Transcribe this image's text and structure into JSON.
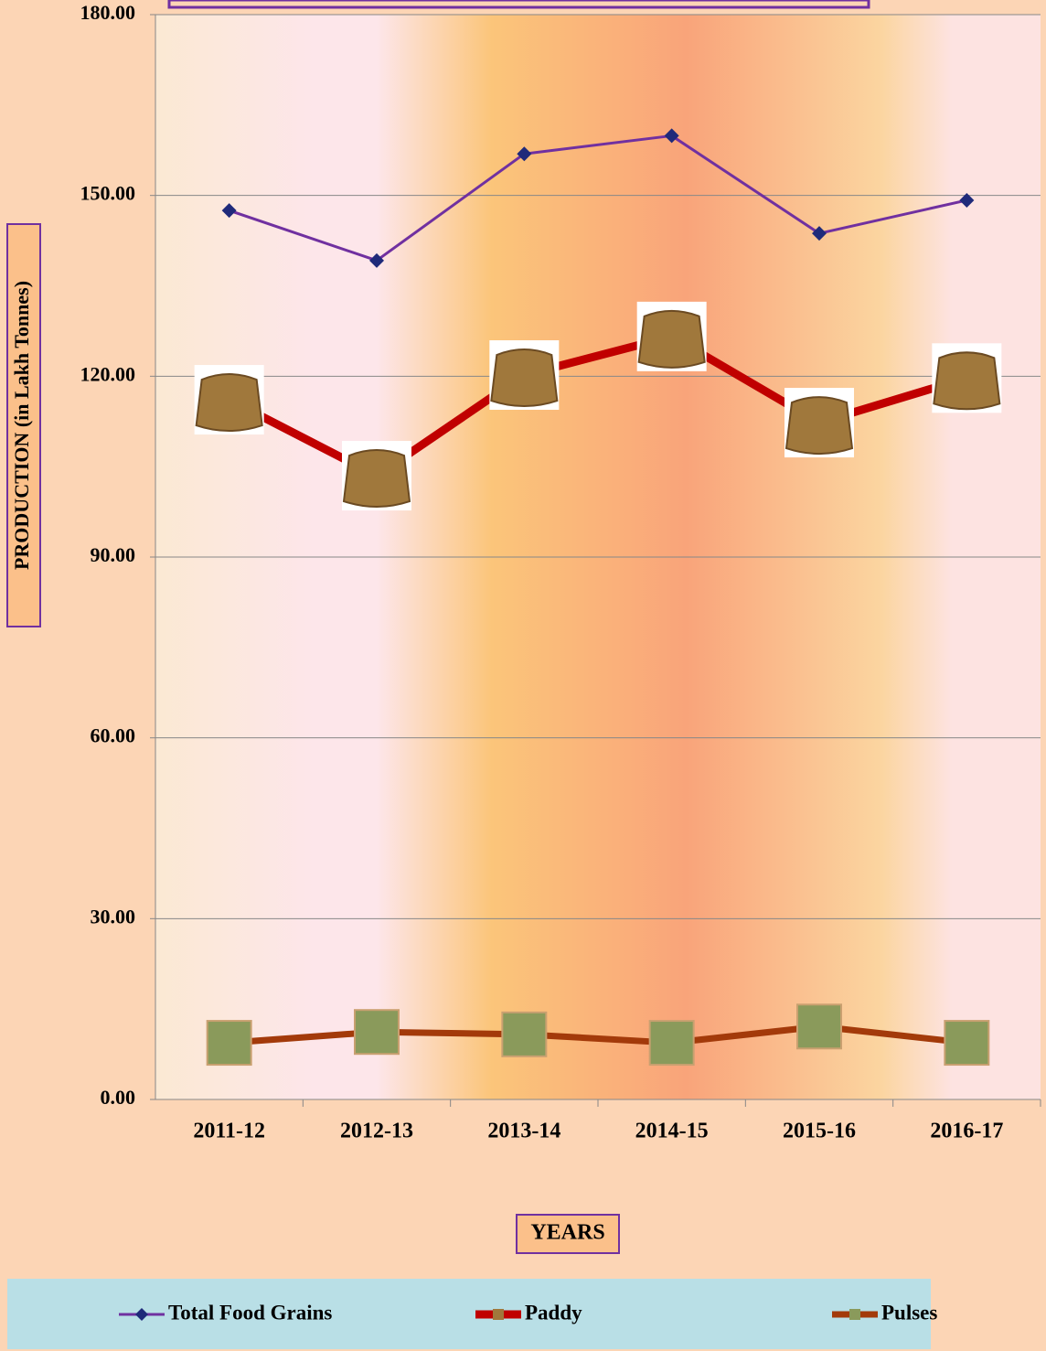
{
  "chart_data": {
    "type": "line",
    "y_label": "PRODUCTION (in Lakh Tonnes)",
    "x_label": "YEARS",
    "categories": [
      "2011-12",
      "2012-13",
      "2013-14",
      "2014-15",
      "2015-16",
      "2016-17"
    ],
    "series": [
      {
        "name": "Total Food Grains",
        "color": "#7030a0",
        "marker_color": "#1f2a7a",
        "values": [
          147.5,
          139.2,
          156.9,
          159.9,
          143.7,
          149.2
        ]
      },
      {
        "name": "Paddy",
        "color": "#c00000",
        "marker_color": "#a0783c",
        "values": [
          116.1,
          103.5,
          120.2,
          126.6,
          112.3,
          119.7
        ]
      },
      {
        "name": "Pulses",
        "color": "#a33a0a",
        "marker_color": "#8a9a5b",
        "values": [
          9.4,
          11.2,
          10.8,
          9.4,
          12.1,
          9.4
        ]
      }
    ],
    "ylim": [
      0,
      180
    ],
    "yticks": [
      {
        "value": 0,
        "label": "0.00"
      },
      {
        "value": 30,
        "label": "30.00"
      },
      {
        "value": 60,
        "label": "60.00"
      },
      {
        "value": 90,
        "label": "90.00"
      },
      {
        "value": 120,
        "label": "120.00"
      },
      {
        "value": 150,
        "label": "150.00"
      },
      {
        "value": 180,
        "label": "180.00"
      }
    ],
    "grid": true
  }
}
